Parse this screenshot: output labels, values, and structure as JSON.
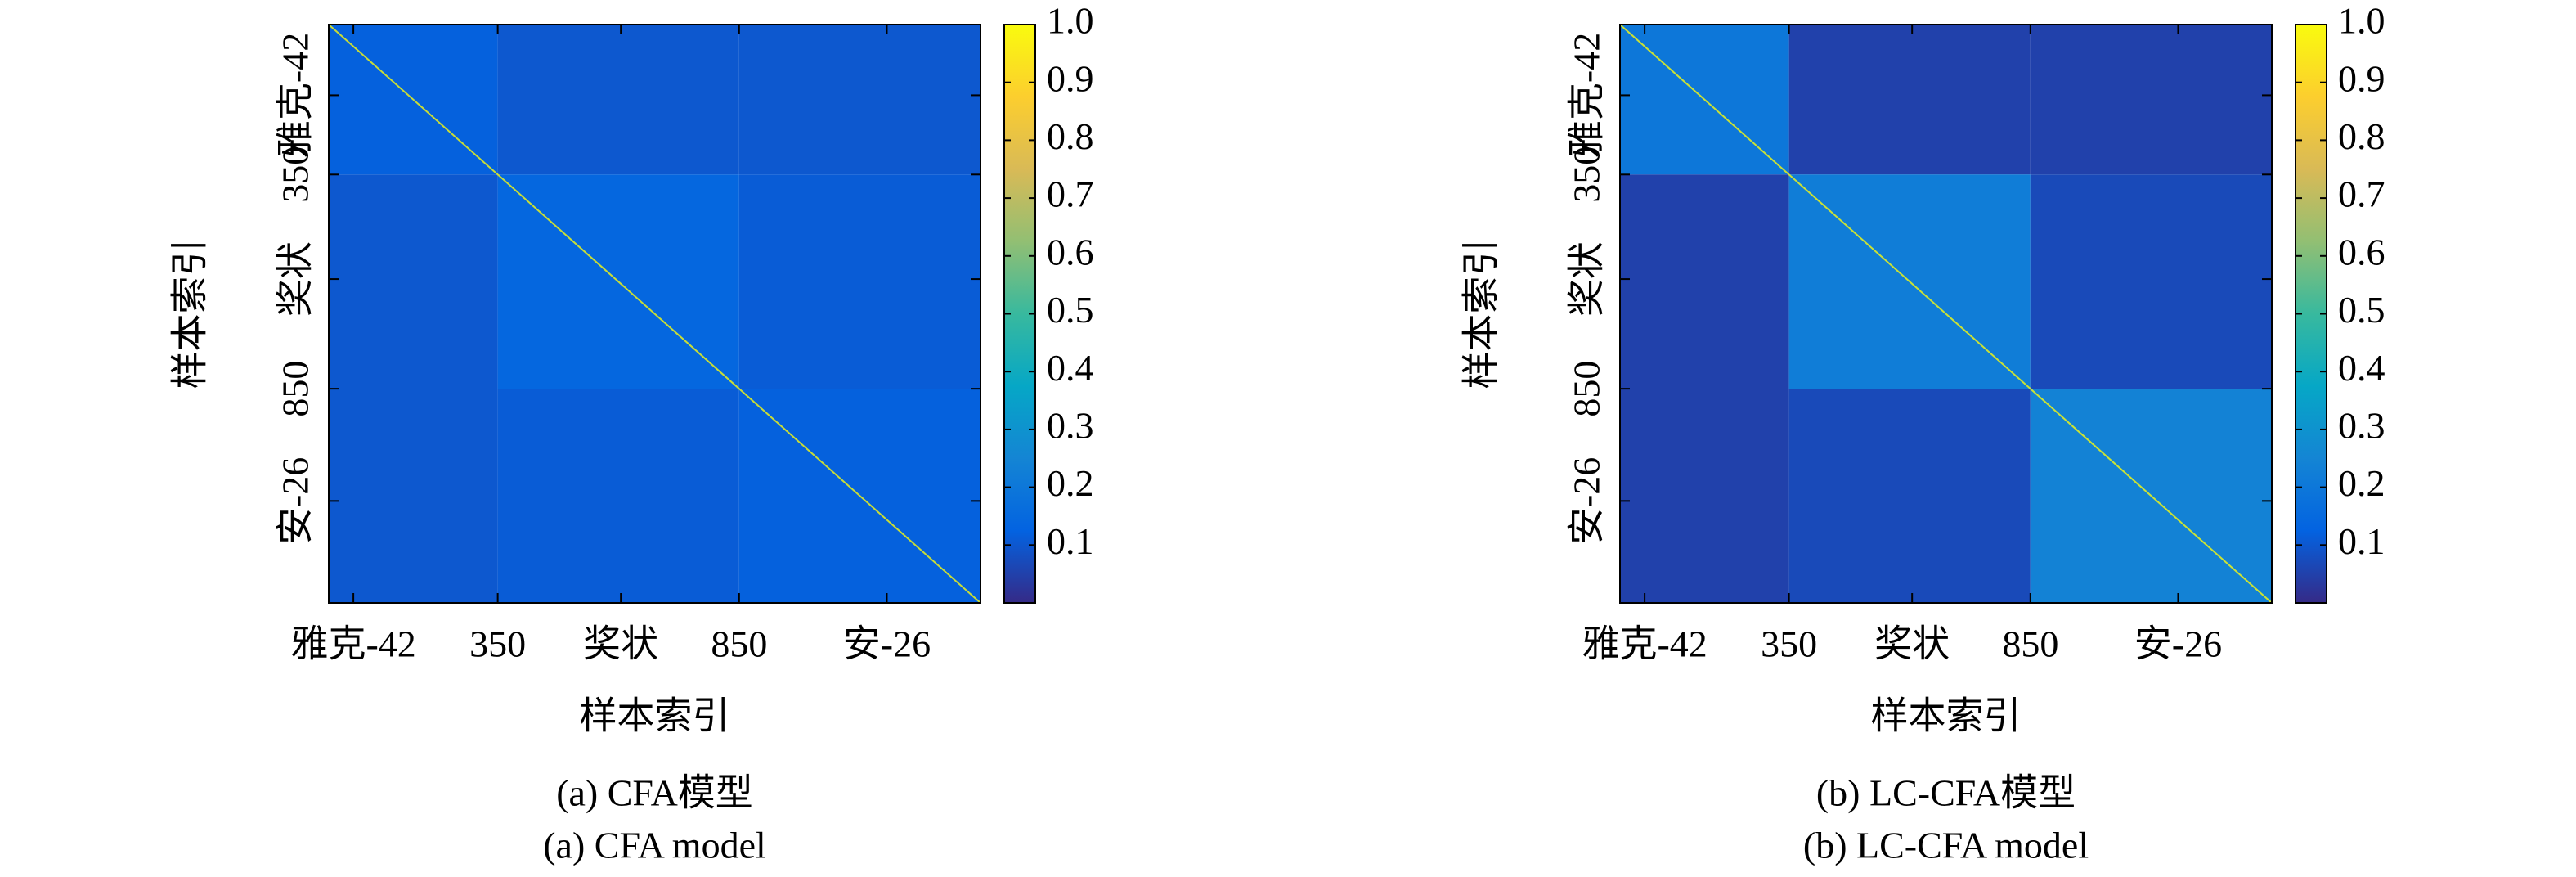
{
  "chart_data": [
    {
      "type": "heatmap",
      "title": "(a) CFA模型",
      "subtitle": "(a) CFA model",
      "xlabel": "样本索引",
      "ylabel": "样本索引",
      "x_edges": [
        0,
        350,
        850,
        1350
      ],
      "y_edges": [
        0,
        350,
        850,
        1350
      ],
      "z": [
        [
          0.12,
          0.1,
          0.1
        ],
        [
          0.1,
          0.14,
          0.11
        ],
        [
          0.1,
          0.11,
          0.12
        ]
      ],
      "diagonal": 1,
      "xlim": [
        0,
        1350
      ],
      "ylim": [
        0,
        1350
      ],
      "xticks": [
        {
          "value": 51,
          "label": "雅克-42"
        },
        350,
        {
          "value": 605,
          "label": "奖状"
        },
        850,
        {
          "value": 1156,
          "label": "安-26"
        }
      ],
      "yticks": [
        {
          "value": 165,
          "label": "雅克-42"
        },
        350,
        {
          "value": 594,
          "label": "奖状"
        },
        850,
        {
          "value": 1112,
          "label": "安-26"
        }
      ],
      "clim": [
        0,
        1
      ],
      "cticks": [
        {
          "value": 0.1,
          "label": "0.1"
        },
        {
          "value": 0.2,
          "label": "0.2"
        },
        {
          "value": 0.3,
          "label": "0.3"
        },
        {
          "value": 0.4,
          "label": "0.4"
        },
        {
          "value": 0.5,
          "label": "0.5"
        },
        {
          "value": 0.6,
          "label": "0.6"
        },
        {
          "value": 0.7,
          "label": "0.7"
        },
        {
          "value": 0.8,
          "label": "0.8"
        },
        {
          "value": 0.9,
          "label": "0.9"
        },
        {
          "value": 1,
          "label": "1.0"
        }
      ],
      "colormap": "parula"
    },
    {
      "type": "heatmap",
      "title": "(b) LC-CFA模型",
      "subtitle": "(b) LC-CFA model",
      "xlabel": "样本索引",
      "ylabel": "样本索引",
      "x_edges": [
        0,
        350,
        850,
        1350
      ],
      "y_edges": [
        0,
        350,
        850,
        1350
      ],
      "z": [
        [
          0.2,
          0.05,
          0.05
        ],
        [
          0.05,
          0.22,
          0.07
        ],
        [
          0.05,
          0.07,
          0.24
        ]
      ],
      "diagonal": 1,
      "xlim": [
        0,
        1350
      ],
      "ylim": [
        0,
        1350
      ],
      "xticks": [
        {
          "value": 51,
          "label": "雅克-42"
        },
        350,
        {
          "value": 605,
          "label": "奖状"
        },
        850,
        {
          "value": 1156,
          "label": "安-26"
        }
      ],
      "yticks": [
        {
          "value": 165,
          "label": "雅克-42"
        },
        350,
        {
          "value": 594,
          "label": "奖状"
        },
        850,
        {
          "value": 1112,
          "label": "安-26"
        }
      ],
      "clim": [
        0,
        1
      ],
      "cticks": [
        {
          "value": 0.1,
          "label": "0.1"
        },
        {
          "value": 0.2,
          "label": "0.2"
        },
        {
          "value": 0.3,
          "label": "0.3"
        },
        {
          "value": 0.4,
          "label": "0.4"
        },
        {
          "value": 0.5,
          "label": "0.5"
        },
        {
          "value": 0.6,
          "label": "0.6"
        },
        {
          "value": 0.7,
          "label": "0.7"
        },
        {
          "value": 0.8,
          "label": "0.8"
        },
        {
          "value": 0.9,
          "label": "0.9"
        },
        {
          "value": 1,
          "label": "1.0"
        }
      ],
      "colormap": "parula"
    }
  ]
}
